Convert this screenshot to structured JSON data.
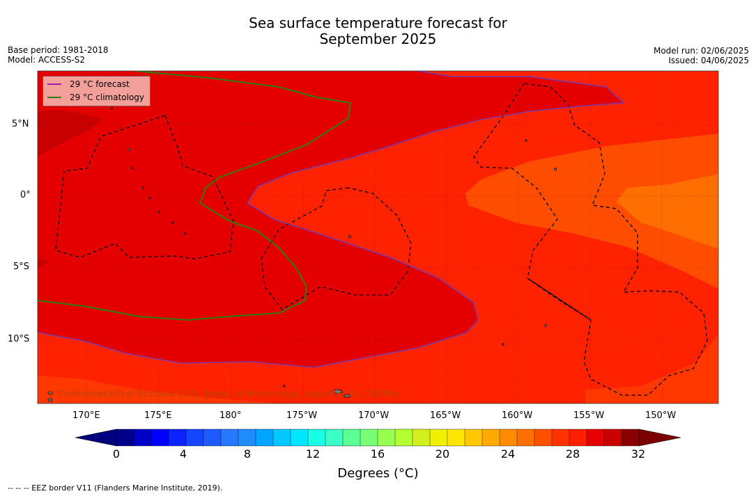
{
  "title_line1": "Sea surface temperature forecast for",
  "title_line2": "September 2025",
  "meta_left": {
    "line1": "Base period: 1981-2018",
    "line2": "Model: ACCESS-S2"
  },
  "meta_right": {
    "line1": "Model run: 02/06/2025",
    "line2": "Issued: 04/06/2025"
  },
  "legend": {
    "forecast": {
      "label": "29 °C  forecast",
      "color": "#9b1fa8"
    },
    "climatology": {
      "label": "29 °C  climatology",
      "color": "#2e7d12"
    }
  },
  "lat_labels": [
    "5°N",
    "0°",
    "5°S",
    "10°S"
  ],
  "lon_labels": [
    "170°E",
    "175°E",
    "180°",
    "175°W",
    "170°W",
    "165°W",
    "160°W",
    "155°W",
    "150°W"
  ],
  "copyright": "© Commonwealth of Australia 2025, Bureau of Meteorology, supported by COSPPac",
  "colorbar": {
    "ticks": [
      "0",
      "4",
      "8",
      "12",
      "16",
      "20",
      "24",
      "28",
      "32"
    ],
    "title": "Degrees (°C)",
    "colors": [
      "#00008b",
      "#0000c8",
      "#0000ff",
      "#0a23ff",
      "#1446ff",
      "#1e5aff",
      "#2878ff",
      "#1e8cff",
      "#00a5ff",
      "#00c8ff",
      "#00e6ff",
      "#19ffe6",
      "#3cffc8",
      "#5aff96",
      "#78ff78",
      "#96ff50",
      "#b4ff32",
      "#d2f01e",
      "#f0f000",
      "#ffe600",
      "#ffc800",
      "#ffaa00",
      "#ff8c00",
      "#ff6e00",
      "#ff5000",
      "#ff3200",
      "#ff1e00",
      "#e60000",
      "#c80000",
      "#8b0000"
    ]
  },
  "footnote": "--  --  -- EEZ border V11 (Flanders Marine Institute, 2019)."
}
